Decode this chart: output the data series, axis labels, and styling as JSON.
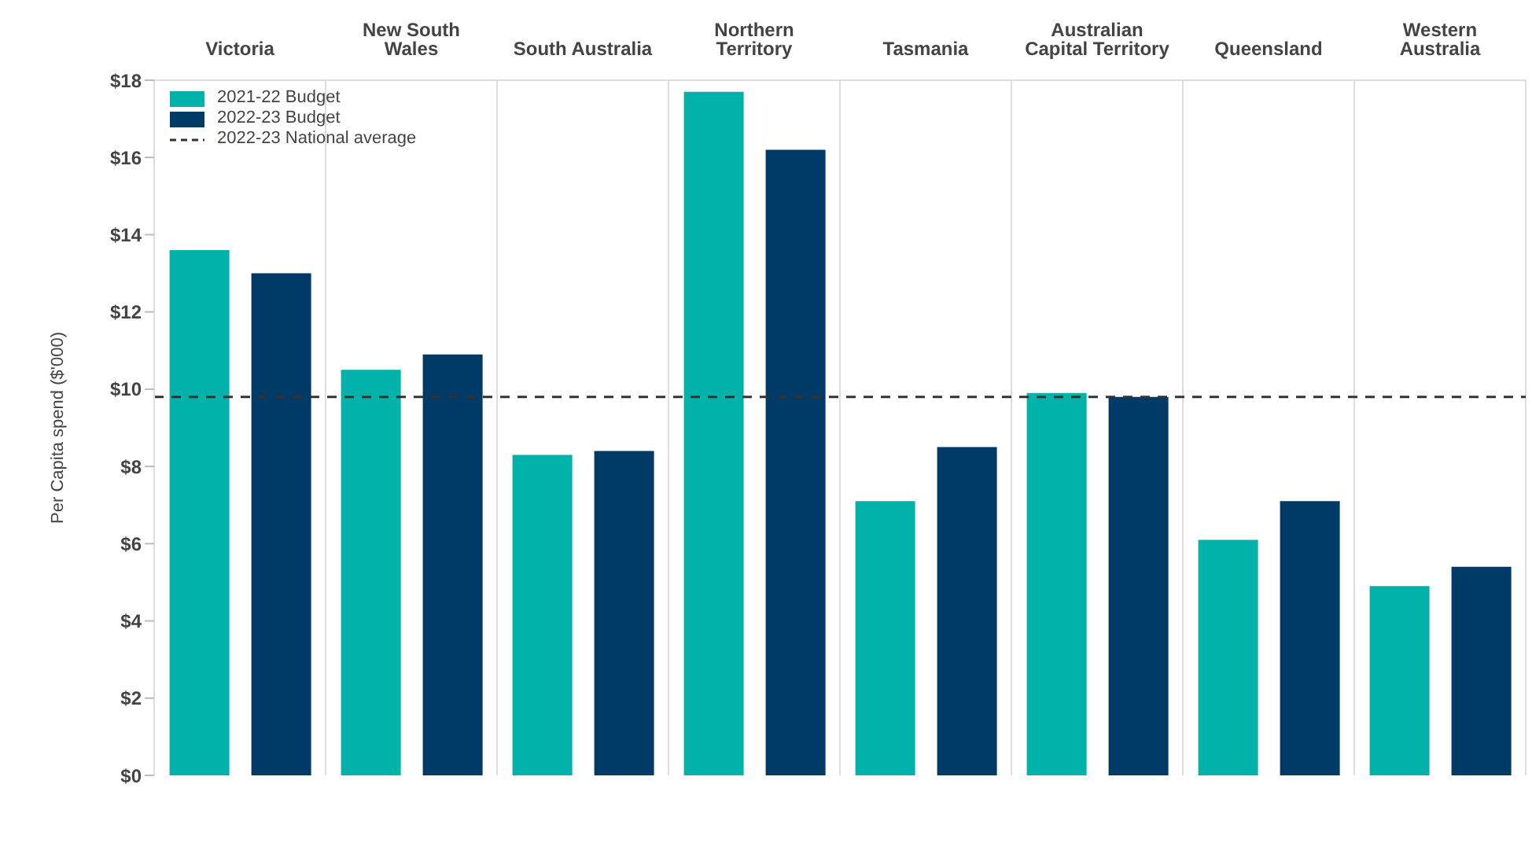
{
  "chart_data": {
    "type": "bar",
    "ylabel": "Per Capita spend ($'000)",
    "categories": [
      "Victoria",
      "New South\nWales",
      "South Australia",
      "Northern\nTerritory",
      "Tasmania",
      "Australian\nCapital Territory",
      "Queensland",
      "Western\nAustralia"
    ],
    "series": [
      {
        "name": "2021-22 Budget",
        "color": "#00b2aa",
        "values": [
          13.6,
          10.5,
          8.3,
          17.7,
          7.1,
          9.9,
          6.1,
          4.9
        ]
      },
      {
        "name": "2022-23 Budget",
        "color": "#003a66",
        "values": [
          13.0,
          10.9,
          8.4,
          16.2,
          8.5,
          9.8,
          7.1,
          5.4
        ]
      }
    ],
    "ylim": [
      0,
      18
    ],
    "yticks": [
      {
        "value": 0,
        "label": "$0"
      },
      {
        "value": 2,
        "label": "$2"
      },
      {
        "value": 4,
        "label": "$4"
      },
      {
        "value": 6,
        "label": "$6"
      },
      {
        "value": 8,
        "label": "$8"
      },
      {
        "value": 10,
        "label": "$10"
      },
      {
        "value": 12,
        "label": "$12"
      },
      {
        "value": 14,
        "label": "$14"
      },
      {
        "value": 16,
        "label": "$16"
      },
      {
        "value": 18,
        "label": "$18"
      }
    ],
    "ref_lines": [
      {
        "axis": "y",
        "value": 9.8,
        "label": "2022-23 National average",
        "color": "#333333",
        "line_style": "dashed"
      }
    ],
    "grid": "x",
    "legend": "top left"
  }
}
